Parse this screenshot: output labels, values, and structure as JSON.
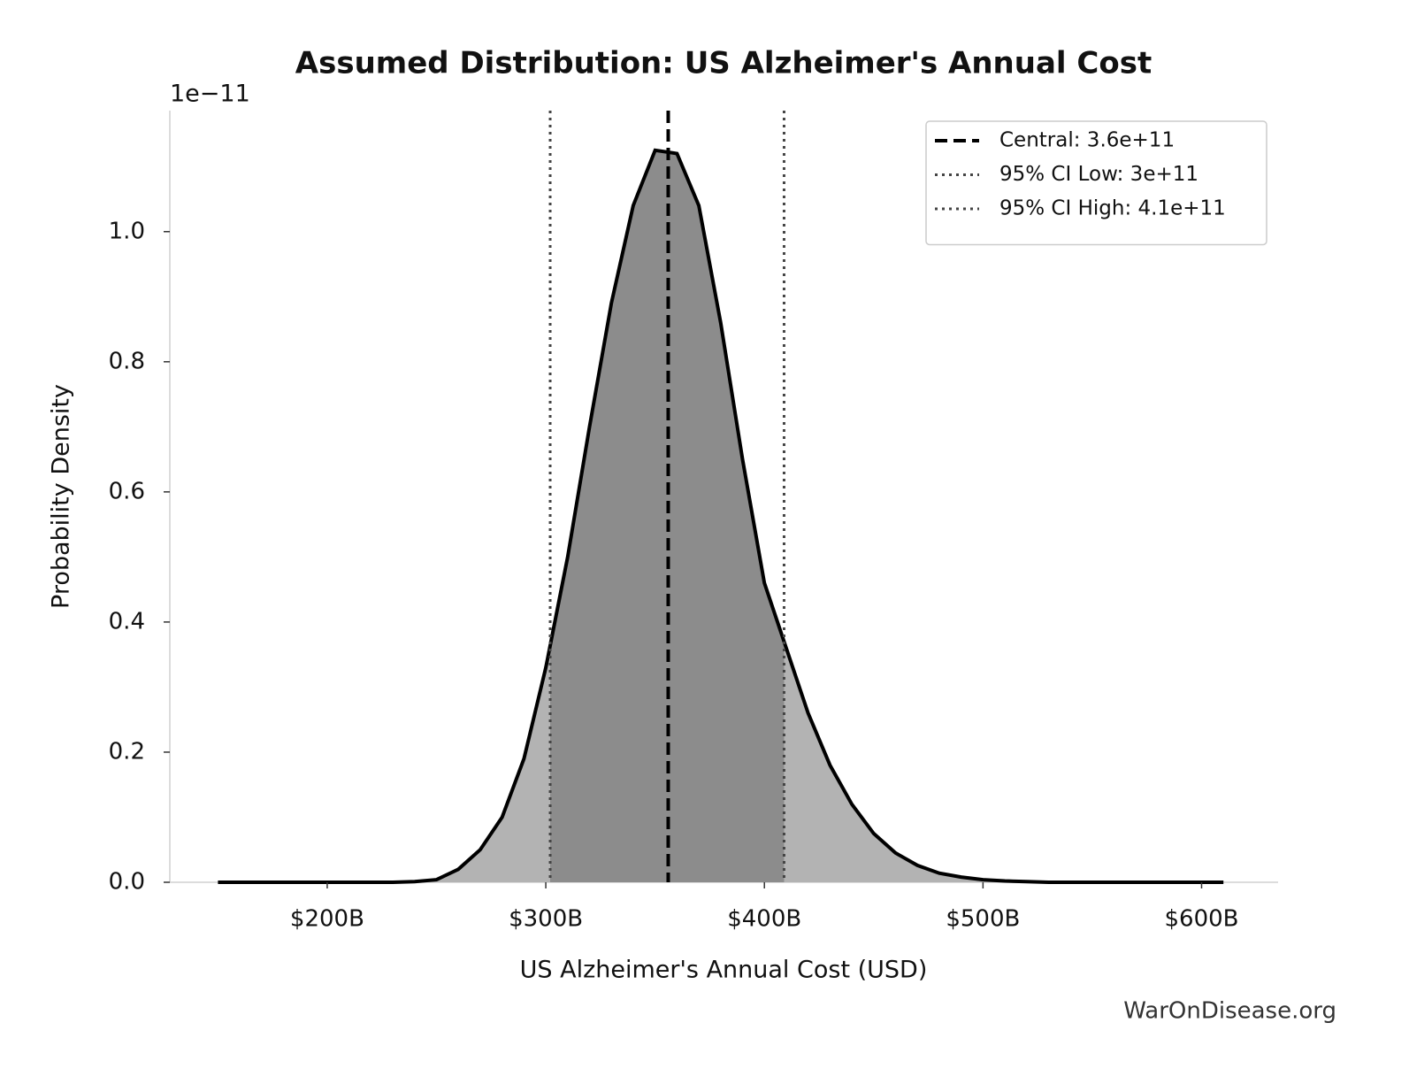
{
  "chart_data": {
    "type": "density",
    "title": "Assumed Distribution: US Alzheimer's Annual Cost",
    "x_label": "US Alzheimer's Annual Cost (USD)",
    "y_label": "Probability Density",
    "y_offset_label": "1e−11",
    "watermark": "WarOnDisease.org",
    "xlim": [
      128000000000.0,
      635000000000.0
    ],
    "ylim": [
      0,
      1.186
    ],
    "xticks": [
      {
        "value": 200000000000.0,
        "label": "$200B"
      },
      {
        "value": 300000000000.0,
        "label": "$300B"
      },
      {
        "value": 400000000000.0,
        "label": "$400B"
      },
      {
        "value": 500000000000.0,
        "label": "$500B"
      },
      {
        "value": 600000000000.0,
        "label": "$600B"
      }
    ],
    "yticks": [
      {
        "value": 0,
        "label": "0.0"
      },
      0.2,
      0.4,
      0.6,
      0.8,
      {
        "value": 1,
        "label": "1.0"
      }
    ],
    "x": [
      150000000000.0,
      160000000000.0,
      170000000000.0,
      180000000000.0,
      190000000000.0,
      200000000000.0,
      210000000000.0,
      220000000000.0,
      230000000000.0,
      240000000000.0,
      250000000000.0,
      260000000000.0,
      270000000000.0,
      280000000000.0,
      290000000000.0,
      300000000000.0,
      310000000000.0,
      320000000000.0,
      330000000000.0,
      340000000000.0,
      350000000000.0,
      360000000000.0,
      370000000000.0,
      380000000000.0,
      390000000000.0,
      400000000000.0,
      410000000000.0,
      420000000000.0,
      430000000000.0,
      440000000000.0,
      450000000000.0,
      460000000000.0,
      470000000000.0,
      480000000000.0,
      490000000000.0,
      500000000000.0,
      510000000000.0,
      520000000000.0,
      530000000000.0,
      540000000000.0,
      550000000000.0,
      560000000000.0,
      570000000000.0,
      580000000000.0,
      590000000000.0,
      600000000000.0,
      610000000000.0
    ],
    "values": [
      0,
      0,
      0,
      0,
      0,
      0,
      0,
      0,
      0,
      0.001,
      0.004,
      0.02,
      0.05,
      0.1,
      0.19,
      0.33,
      0.5,
      0.7,
      0.89,
      1.04,
      1.125,
      1.12,
      1.04,
      0.86,
      0.65,
      0.46,
      0.36,
      0.26,
      0.18,
      0.12,
      0.075,
      0.045,
      0.026,
      0.014,
      0.008,
      0.004,
      0.002,
      0.001,
      0,
      0,
      0,
      0,
      0,
      0,
      0,
      0,
      0
    ],
    "line_color": "#000000",
    "fill_color": "#b3b3b3",
    "ci_fill_color": "#8c8c8c",
    "reference_lines": [
      {
        "name": "Central: 3.6e+11",
        "value": 356000000000.0,
        "style": "dashed",
        "color": "#000000"
      },
      {
        "name": "95% CI Low: 3e+11",
        "value": 302000000000.0,
        "style": "dotted",
        "color": "#444444"
      },
      {
        "name": "95% CI High: 4.1e+11",
        "value": 409000000000.0,
        "style": "dotted",
        "color": "#444444"
      }
    ],
    "legend_position": "upper right"
  }
}
